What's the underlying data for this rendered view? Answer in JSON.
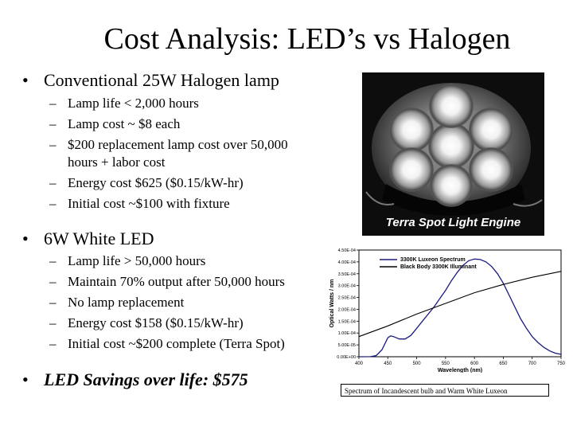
{
  "title": "Cost Analysis: LED’s vs Halogen",
  "bullets": {
    "halogen": {
      "marker": "•",
      "label": "Conventional 25W Halogen lamp",
      "items": [
        "Lamp life < 2,000 hours",
        "Lamp cost ~ $8 each",
        "$200 replacement lamp cost over 50,000",
        "hours + labor cost",
        "Energy cost $625 ($0.15/kW-hr)",
        "Initial cost ~$100 with fixture"
      ]
    },
    "led": {
      "marker": "•",
      "label": "6W White LED",
      "items": [
        "Lamp life > 50,000 hours",
        "Maintain 70%  output after 50,000 hours",
        "No lamp replacement",
        "Energy cost $158 ($0.15/kW-hr)",
        "Initial cost ~$200 complete (Terra Spot)"
      ]
    },
    "savings": {
      "marker": "•",
      "label": "LED Savings over life: $575"
    },
    "dash": "–"
  },
  "photo": {
    "caption": "Terra Spot Light Engine"
  },
  "chart_data": {
    "type": "line",
    "title": "",
    "xlabel": "Wavelength (nm)",
    "ylabel": "Optical Watts / nm",
    "xlim": [
      400,
      750
    ],
    "ylim": [
      0.0,
      0.00045
    ],
    "x_ticks": [
      "400",
      "450",
      "500",
      "550",
      "600",
      "650",
      "700",
      "750"
    ],
    "y_ticks": [
      "0.00E+00",
      "5.00E-05",
      "1.00E-04",
      "1.50E-04",
      "2.00E-04",
      "2.50E-04",
      "3.00E-04",
      "3.50E-04",
      "4.00E-04",
      "4.50E-04"
    ],
    "legend_position": "top",
    "series": [
      {
        "name": "3300K Luxeon Spectrum",
        "color": "#1a1a80",
        "x": [
          400,
          420,
          430,
          440,
          450,
          455,
          460,
          470,
          480,
          490,
          500,
          510,
          520,
          530,
          540,
          550,
          560,
          570,
          580,
          590,
          600,
          610,
          620,
          630,
          640,
          650,
          660,
          670,
          680,
          690,
          700,
          710,
          720,
          730,
          740,
          750
        ],
        "y": [
          0.0,
          2e-07,
          5e-06,
          3e-05,
          8e-05,
          8.8e-05,
          8.5e-05,
          7.5e-05,
          7.5e-05,
          9e-05,
          0.00012,
          0.00015,
          0.00018,
          0.00021,
          0.000245,
          0.00028,
          0.00032,
          0.000355,
          0.000385,
          0.000405,
          0.000412,
          0.00041,
          0.0004,
          0.00038,
          0.00035,
          0.00031,
          0.00026,
          0.00021,
          0.00016,
          0.00012,
          8.5e-05,
          6e-05,
          4e-05,
          2.5e-05,
          1.5e-05,
          1e-05
        ]
      },
      {
        "name": "Black Body 3300K Illuminant",
        "color": "#000000",
        "x": [
          400,
          450,
          500,
          550,
          600,
          650,
          700,
          750
        ],
        "y": [
          8.5e-05,
          0.00013,
          0.00018,
          0.000225,
          0.00027,
          0.000305,
          0.000335,
          0.00036
        ]
      }
    ]
  },
  "spectrum_caption": "Spectrum of Incandescent bulb and Warm White Luxeon"
}
